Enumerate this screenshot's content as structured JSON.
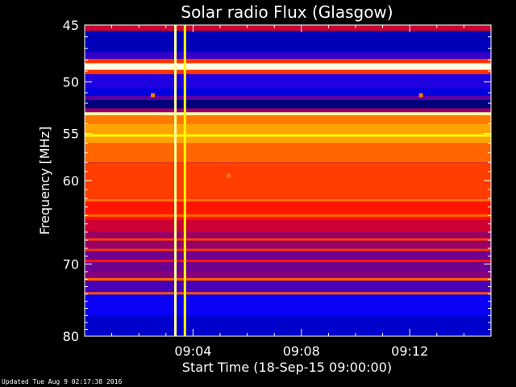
{
  "chart_data": {
    "type": "heatmap",
    "title": "Solar radio Flux (Glasgow)",
    "xlabel": "Start Time (18-Sep-15 09:00:00)",
    "ylabel": "Frequency [MHz]",
    "x_unit": "minutes after 09:00:00",
    "xlim": [
      0,
      15
    ],
    "ylim": [
      45,
      80
    ],
    "y_scale": "log",
    "y_ticks": [
      45,
      50,
      55,
      60,
      70,
      80
    ],
    "y_tick_labels": [
      "45",
      "50",
      "55",
      "60",
      "70",
      "80"
    ],
    "x_ticks": [
      4,
      8,
      12
    ],
    "x_tick_labels": [
      "09:04",
      "09:08",
      "09:12"
    ],
    "colormap": [
      "#000000",
      "#0000ff",
      "#ff0000",
      "#ffff00",
      "#ffffff"
    ],
    "frequency_bands": [
      {
        "from": 45.0,
        "to": 45.5,
        "level": 0.45
      },
      {
        "from": 45.5,
        "to": 47.3,
        "level": 0.18
      },
      {
        "from": 47.3,
        "to": 47.9,
        "level": 0.3
      },
      {
        "from": 47.9,
        "to": 48.3,
        "level": 0.55
      },
      {
        "from": 48.3,
        "to": 48.9,
        "level": 0.97
      },
      {
        "from": 48.9,
        "to": 49.3,
        "level": 0.55
      },
      {
        "from": 49.3,
        "to": 50.6,
        "level": 0.28
      },
      {
        "from": 50.6,
        "to": 51.3,
        "level": 0.22
      },
      {
        "from": 51.3,
        "to": 51.7,
        "level": 0.34
      },
      {
        "from": 51.7,
        "to": 52.5,
        "level": 0.12
      },
      {
        "from": 52.5,
        "to": 52.9,
        "level": 0.4
      },
      {
        "from": 52.9,
        "to": 53.2,
        "level": 0.9
      },
      {
        "from": 53.2,
        "to": 54.0,
        "level": 0.62
      },
      {
        "from": 54.0,
        "to": 56.0,
        "level": 0.66
      },
      {
        "from": 56.0,
        "to": 58.0,
        "level": 0.6
      },
      {
        "from": 58.0,
        "to": 62.0,
        "level": 0.56
      },
      {
        "from": 62.0,
        "to": 64.5,
        "level": 0.52
      },
      {
        "from": 64.5,
        "to": 66.0,
        "level": 0.45
      },
      {
        "from": 66.0,
        "to": 68.0,
        "level": 0.4
      },
      {
        "from": 68.0,
        "to": 71.0,
        "level": 0.36
      },
      {
        "from": 71.0,
        "to": 72.3,
        "level": 0.38
      },
      {
        "from": 72.3,
        "to": 74.0,
        "level": 0.32
      },
      {
        "from": 74.0,
        "to": 77.0,
        "level": 0.26
      },
      {
        "from": 77.0,
        "to": 80.0,
        "level": 0.2
      }
    ],
    "bright_lines_mhz": [
      {
        "f": 48.6,
        "level": 0.98
      },
      {
        "f": 53.0,
        "level": 0.92
      },
      {
        "f": 55.2,
        "level": 0.75
      },
      {
        "f": 62.2,
        "level": 0.62
      },
      {
        "f": 64.0,
        "level": 0.6
      },
      {
        "f": 66.9,
        "level": 0.56
      },
      {
        "f": 68.2,
        "level": 0.55
      },
      {
        "f": 69.6,
        "level": 0.52
      },
      {
        "f": 72.0,
        "level": 0.6
      },
      {
        "f": 73.9,
        "level": 0.58
      }
    ],
    "bursts": [
      {
        "time": 3.35,
        "from": 45,
        "to": 80,
        "level": 0.9
      },
      {
        "time": 3.7,
        "from": 45,
        "to": 80,
        "level": 0.75
      }
    ],
    "spots": [
      {
        "time": 2.5,
        "f": 51.2
      },
      {
        "time": 12.4,
        "f": 51.2
      },
      {
        "time": 5.3,
        "f": 59.4
      }
    ]
  },
  "footer": "Updated Tue Aug  9 02:17:38 2016"
}
